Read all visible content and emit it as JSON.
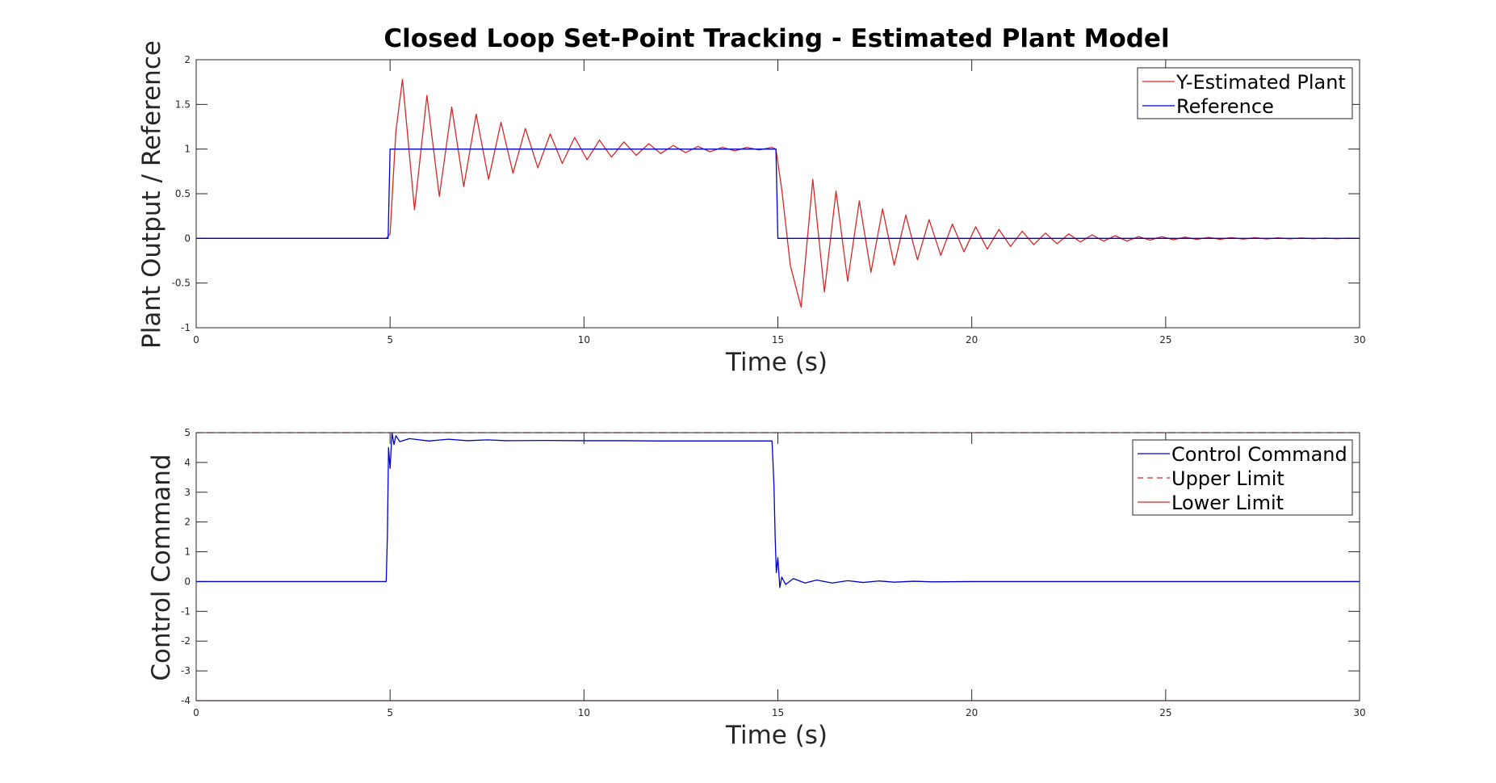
{
  "chart_data": [
    {
      "type": "line",
      "title": "Closed Loop Set-Point Tracking - Estimated Plant Model",
      "xlabel": "Time (s)",
      "ylabel": "Plant Output / Reference",
      "xlim": [
        0,
        30
      ],
      "ylim": [
        -1,
        2
      ],
      "xticks": [
        "0",
        "5",
        "10",
        "15",
        "20",
        "25",
        "30"
      ],
      "yticks": [
        "2",
        "1.5",
        "1",
        "0.5",
        "0",
        "-0.5",
        "-1"
      ],
      "grid": false,
      "legend_position": "top-right",
      "series": [
        {
          "name": "Y-Estimated Plant",
          "color": "#d62728",
          "style": "solid",
          "description": "damped oscillation after each reference step",
          "x": [
            0,
            4.9,
            5.0,
            5.15,
            5.32,
            5.63,
            5.95,
            6.27,
            6.59,
            6.9,
            7.22,
            7.54,
            7.86,
            8.17,
            8.49,
            8.81,
            9.13,
            9.44,
            9.76,
            10.08,
            10.4,
            10.71,
            11.03,
            11.35,
            11.67,
            11.98,
            12.3,
            12.62,
            12.94,
            13.25,
            13.57,
            13.89,
            14.2,
            14.52,
            14.84,
            14.95,
            15.1,
            15.32,
            15.6,
            15.9,
            16.2,
            16.5,
            16.8,
            17.1,
            17.4,
            17.7,
            18.0,
            18.3,
            18.6,
            18.9,
            19.2,
            19.5,
            19.8,
            20.1,
            20.4,
            20.7,
            21.0,
            21.3,
            21.6,
            21.9,
            22.2,
            22.5,
            22.8,
            23.1,
            23.4,
            23.7,
            24.0,
            24.3,
            24.6,
            24.9,
            25.2,
            25.5,
            25.8,
            26.1,
            26.4,
            26.7,
            27.0,
            27.3,
            27.6,
            27.9,
            28.2,
            28.5,
            28.8,
            29.1,
            29.4,
            29.7,
            30.0
          ],
          "y": [
            0,
            0,
            0.05,
            1.2,
            1.78,
            0.32,
            1.6,
            0.47,
            1.47,
            0.58,
            1.39,
            0.66,
            1.3,
            0.73,
            1.23,
            0.79,
            1.17,
            0.84,
            1.13,
            0.88,
            1.1,
            0.91,
            1.08,
            0.93,
            1.06,
            0.95,
            1.04,
            0.96,
            1.03,
            0.97,
            1.02,
            0.98,
            1.02,
            0.99,
            1.02,
            1.0,
            0.55,
            -0.3,
            -0.77,
            0.66,
            -0.6,
            0.53,
            -0.48,
            0.42,
            -0.38,
            0.33,
            -0.3,
            0.26,
            -0.24,
            0.21,
            -0.19,
            0.16,
            -0.15,
            0.13,
            -0.12,
            0.1,
            -0.09,
            0.08,
            -0.07,
            0.06,
            -0.06,
            0.05,
            -0.04,
            0.04,
            -0.03,
            0.03,
            -0.03,
            0.02,
            -0.02,
            0.02,
            -0.015,
            0.015,
            -0.012,
            0.012,
            -0.01,
            0.01,
            -0.008,
            0.008,
            -0.006,
            0.006,
            -0.005,
            0.005,
            -0.004,
            0.004,
            -0.003,
            0.003,
            0
          ]
        },
        {
          "name": "Reference",
          "color": "#0000cc",
          "style": "solid",
          "x": [
            0,
            4.95,
            5.0,
            14.95,
            15.0,
            30.0
          ],
          "y": [
            0,
            0,
            1,
            1,
            0,
            0
          ]
        }
      ]
    },
    {
      "type": "line",
      "title": "",
      "xlabel": "Time (s)",
      "ylabel": "Control Command",
      "xlim": [
        0,
        30
      ],
      "ylim": [
        -4,
        5
      ],
      "xticks": [
        "0",
        "5",
        "10",
        "15",
        "20",
        "25",
        "30"
      ],
      "yticks": [
        "5",
        "4",
        "3",
        "2",
        "1",
        "0",
        "-1",
        "-2",
        "-3",
        "-4"
      ],
      "grid": false,
      "legend_position": "top-right",
      "series": [
        {
          "name": "Control Command",
          "color": "#0000cc",
          "style": "solid",
          "x": [
            0,
            4.9,
            4.93,
            4.96,
            5.0,
            5.05,
            5.1,
            5.15,
            5.25,
            5.5,
            6.0,
            6.5,
            7.0,
            7.5,
            8.0,
            9.0,
            10.0,
            11.0,
            12.0,
            13.0,
            14.0,
            14.85,
            14.9,
            14.93,
            14.96,
            15.0,
            15.05,
            15.1,
            15.2,
            15.4,
            15.7,
            16.0,
            16.4,
            16.8,
            17.2,
            17.6,
            18.0,
            18.5,
            19.0,
            20.0,
            21.0,
            22.0,
            24.0,
            26.0,
            28.0,
            30.0
          ],
          "y": [
            0,
            0,
            1.5,
            4.5,
            3.8,
            5.0,
            4.6,
            4.9,
            4.7,
            4.8,
            4.72,
            4.78,
            4.73,
            4.76,
            4.73,
            4.74,
            4.73,
            4.73,
            4.72,
            4.72,
            4.72,
            4.72,
            3.2,
            1.5,
            0.3,
            0.8,
            -0.2,
            0.15,
            -0.1,
            0.1,
            -0.05,
            0.05,
            -0.05,
            0.03,
            -0.03,
            0.02,
            -0.02,
            0.01,
            -0.01,
            0.0,
            0.0,
            0.0,
            0.0,
            0.0,
            0.0,
            0.0
          ]
        },
        {
          "name": "Upper Limit",
          "color": "#d62728",
          "style": "dashed",
          "x": [
            0,
            30
          ],
          "y": [
            5,
            5
          ]
        },
        {
          "name": "Lower Limit",
          "color": "#d62728",
          "style": "solid",
          "x": [
            0,
            30
          ],
          "y": [
            -4,
            -4
          ]
        }
      ]
    }
  ]
}
